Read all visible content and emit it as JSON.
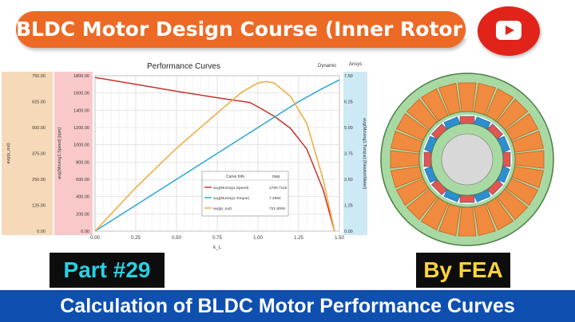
{
  "header": {
    "title": "BLDC Motor Design Course (Inner Rotor)"
  },
  "icons": {
    "youtube": "youtube-play-icon",
    "motor": "motor-cross-section"
  },
  "chart_data": {
    "type": "line",
    "title": "Performance Curves",
    "corner_left": "Dynamic",
    "corner_right": "Ansys",
    "xlabel": "k_L",
    "x_ticks": [
      "0.00",
      "0.25",
      "0.50",
      "0.75",
      "1.00",
      "1.25",
      "1.50"
    ],
    "xlim": [
      0,
      1.5
    ],
    "axes": [
      {
        "label": "avg(p_out)",
        "color": "#f6d9b8",
        "lim": [
          0,
          750
        ],
        "ticks": [
          "0.00",
          "125.00",
          "250.00",
          "375.00",
          "500.00",
          "625.00",
          "750.00"
        ]
      },
      {
        "label": "avg(Moving1.Speed) [rpm]",
        "color": "#f9c9c9",
        "lim": [
          0,
          1800
        ],
        "ticks": [
          "0.00",
          "200.00",
          "400.00",
          "600.00",
          "800.00",
          "1000.00",
          "1200.00",
          "1400.00",
          "1600.00",
          "1800.00"
        ]
      },
      {
        "label": "avg(Moving1.Torque) [NewtonMeter]",
        "color": "#cde9f5",
        "lim": [
          0,
          7.5
        ],
        "ticks": [
          "0.00",
          "1.25",
          "2.50",
          "3.75",
          "5.00",
          "6.25",
          "7.50"
        ]
      }
    ],
    "series": [
      {
        "name": "avg(Moving1.Speed)",
        "color": "#c8322f",
        "axis": 1,
        "x": [
          0,
          0.25,
          0.5,
          0.75,
          0.95,
          1.0,
          1.1,
          1.2,
          1.3,
          1.4,
          1.47
        ],
        "y": [
          1780,
          1700,
          1620,
          1545,
          1490,
          1440,
          1330,
          1190,
          950,
          480,
          0
        ]
      },
      {
        "name": "avg(Moving1.Torque)",
        "color": "#2aa6d8",
        "axis": 2,
        "x": [
          0,
          0.25,
          0.5,
          0.75,
          1.0,
          1.25,
          1.4,
          1.5
        ],
        "y": [
          0,
          1.25,
          2.5,
          3.75,
          5.0,
          6.25,
          6.9,
          7.3
        ]
      },
      {
        "name": "avg(p_out)",
        "color": "#f0a93a",
        "axis": 0,
        "x": [
          0,
          0.25,
          0.5,
          0.75,
          0.9,
          1.0,
          1.05,
          1.1,
          1.2,
          1.3,
          1.4,
          1.47
        ],
        "y": [
          0,
          210,
          400,
          570,
          670,
          715,
          722,
          715,
          650,
          520,
          250,
          0
        ]
      }
    ],
    "legend": {
      "position": "center-right",
      "header": [
        "Curve Info",
        "max"
      ],
      "rows": [
        {
          "label": "avg(Moving1.Speed)",
          "value": "1780.7116",
          "color": "#c8322f"
        },
        {
          "label": "avg(Moving1.Torque)",
          "value": "7.2984",
          "color": "#2aa6d8"
        },
        {
          "label": "avg(p_out)",
          "value": "721.8006",
          "color": "#f0a93a"
        }
      ]
    },
    "grid": true
  },
  "badges": {
    "part": "Part #29",
    "by": "By FEA"
  },
  "footer": {
    "caption": "Calculation of BLDC Motor Performance Curves"
  }
}
